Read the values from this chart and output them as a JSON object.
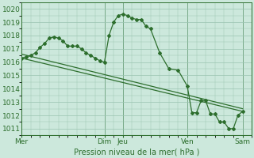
{
  "background_color": "#cce8dc",
  "plot_bg_color": "#cce8dc",
  "grid_color": "#99c4b0",
  "line_color": "#2d6e2d",
  "marker_color": "#2d6e2d",
  "xlabel_text": "Pression niveau de la mer( hPa )",
  "ylim": [
    1010.5,
    1020.5
  ],
  "yticks": [
    1011,
    1012,
    1013,
    1014,
    1015,
    1016,
    1017,
    1018,
    1019,
    1020
  ],
  "day_labels": [
    "Mer",
    "Dim",
    "Jeu",
    "Ven",
    "Sam"
  ],
  "day_positions": [
    0,
    9,
    11,
    18,
    24
  ],
  "xlim": [
    0,
    25
  ],
  "series1_x": [
    0,
    0.5,
    1,
    1.5,
    2,
    2.5,
    3,
    3.5,
    4,
    4.5,
    5,
    5.5,
    6,
    6.5,
    7,
    7.5,
    8,
    8.5,
    9,
    9.5,
    10,
    10.5,
    11,
    11.5,
    12,
    12.5,
    13,
    13.5,
    14,
    15,
    16,
    17,
    18,
    18.5,
    19,
    19.5,
    20,
    20.5,
    21,
    21.5,
    22,
    22.5,
    23,
    23.5,
    24
  ],
  "series1_y": [
    1016.3,
    1016.4,
    1016.5,
    1016.7,
    1017.1,
    1017.4,
    1017.8,
    1017.9,
    1017.8,
    1017.6,
    1017.2,
    1017.2,
    1017.2,
    1017.0,
    1016.7,
    1016.5,
    1016.3,
    1016.1,
    1016.0,
    1018.0,
    1019.0,
    1019.5,
    1019.6,
    1019.5,
    1019.3,
    1019.2,
    1019.2,
    1018.7,
    1018.5,
    1016.7,
    1015.5,
    1015.4,
    1014.2,
    1012.2,
    1012.2,
    1013.1,
    1013.1,
    1012.1,
    1012.1,
    1011.5,
    1011.5,
    1011.0,
    1011.0,
    1012.0,
    1012.3
  ],
  "series2_x": [
    0,
    24
  ],
  "series2_y": [
    1016.3,
    1012.3
  ],
  "series3_x": [
    0,
    24
  ],
  "series3_y": [
    1016.6,
    1012.5
  ]
}
